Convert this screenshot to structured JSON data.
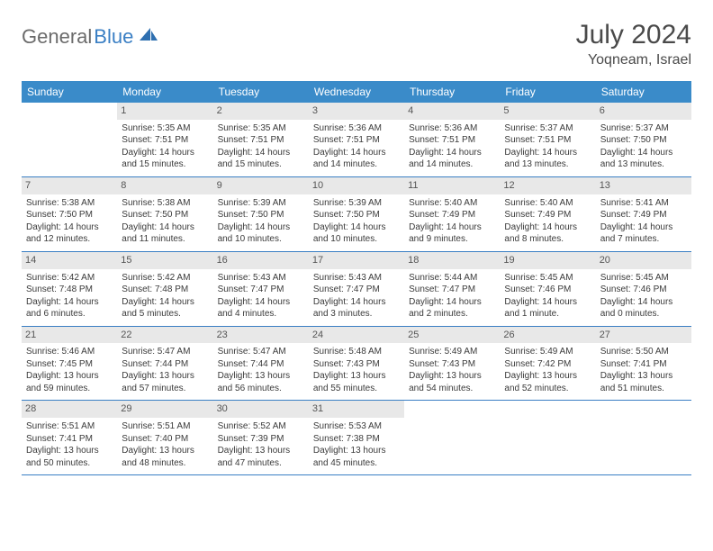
{
  "logo": {
    "part1": "General",
    "part2": "Blue"
  },
  "title": "July 2024",
  "location": "Yoqneam, Israel",
  "colors": {
    "header_bg": "#3a8bc9",
    "accent": "#3a7fc4",
    "text": "#4a4a4a",
    "daynum_bg": "#e8e8e8"
  },
  "weekdays": [
    "Sunday",
    "Monday",
    "Tuesday",
    "Wednesday",
    "Thursday",
    "Friday",
    "Saturday"
  ],
  "weeks": [
    [
      {
        "n": "",
        "sr": "",
        "ss": "",
        "dl": ""
      },
      {
        "n": "1",
        "sr": "Sunrise: 5:35 AM",
        "ss": "Sunset: 7:51 PM",
        "dl": "Daylight: 14 hours and 15 minutes."
      },
      {
        "n": "2",
        "sr": "Sunrise: 5:35 AM",
        "ss": "Sunset: 7:51 PM",
        "dl": "Daylight: 14 hours and 15 minutes."
      },
      {
        "n": "3",
        "sr": "Sunrise: 5:36 AM",
        "ss": "Sunset: 7:51 PM",
        "dl": "Daylight: 14 hours and 14 minutes."
      },
      {
        "n": "4",
        "sr": "Sunrise: 5:36 AM",
        "ss": "Sunset: 7:51 PM",
        "dl": "Daylight: 14 hours and 14 minutes."
      },
      {
        "n": "5",
        "sr": "Sunrise: 5:37 AM",
        "ss": "Sunset: 7:51 PM",
        "dl": "Daylight: 14 hours and 13 minutes."
      },
      {
        "n": "6",
        "sr": "Sunrise: 5:37 AM",
        "ss": "Sunset: 7:50 PM",
        "dl": "Daylight: 14 hours and 13 minutes."
      }
    ],
    [
      {
        "n": "7",
        "sr": "Sunrise: 5:38 AM",
        "ss": "Sunset: 7:50 PM",
        "dl": "Daylight: 14 hours and 12 minutes."
      },
      {
        "n": "8",
        "sr": "Sunrise: 5:38 AM",
        "ss": "Sunset: 7:50 PM",
        "dl": "Daylight: 14 hours and 11 minutes."
      },
      {
        "n": "9",
        "sr": "Sunrise: 5:39 AM",
        "ss": "Sunset: 7:50 PM",
        "dl": "Daylight: 14 hours and 10 minutes."
      },
      {
        "n": "10",
        "sr": "Sunrise: 5:39 AM",
        "ss": "Sunset: 7:50 PM",
        "dl": "Daylight: 14 hours and 10 minutes."
      },
      {
        "n": "11",
        "sr": "Sunrise: 5:40 AM",
        "ss": "Sunset: 7:49 PM",
        "dl": "Daylight: 14 hours and 9 minutes."
      },
      {
        "n": "12",
        "sr": "Sunrise: 5:40 AM",
        "ss": "Sunset: 7:49 PM",
        "dl": "Daylight: 14 hours and 8 minutes."
      },
      {
        "n": "13",
        "sr": "Sunrise: 5:41 AM",
        "ss": "Sunset: 7:49 PM",
        "dl": "Daylight: 14 hours and 7 minutes."
      }
    ],
    [
      {
        "n": "14",
        "sr": "Sunrise: 5:42 AM",
        "ss": "Sunset: 7:48 PM",
        "dl": "Daylight: 14 hours and 6 minutes."
      },
      {
        "n": "15",
        "sr": "Sunrise: 5:42 AM",
        "ss": "Sunset: 7:48 PM",
        "dl": "Daylight: 14 hours and 5 minutes."
      },
      {
        "n": "16",
        "sr": "Sunrise: 5:43 AM",
        "ss": "Sunset: 7:47 PM",
        "dl": "Daylight: 14 hours and 4 minutes."
      },
      {
        "n": "17",
        "sr": "Sunrise: 5:43 AM",
        "ss": "Sunset: 7:47 PM",
        "dl": "Daylight: 14 hours and 3 minutes."
      },
      {
        "n": "18",
        "sr": "Sunrise: 5:44 AM",
        "ss": "Sunset: 7:47 PM",
        "dl": "Daylight: 14 hours and 2 minutes."
      },
      {
        "n": "19",
        "sr": "Sunrise: 5:45 AM",
        "ss": "Sunset: 7:46 PM",
        "dl": "Daylight: 14 hours and 1 minute."
      },
      {
        "n": "20",
        "sr": "Sunrise: 5:45 AM",
        "ss": "Sunset: 7:46 PM",
        "dl": "Daylight: 14 hours and 0 minutes."
      }
    ],
    [
      {
        "n": "21",
        "sr": "Sunrise: 5:46 AM",
        "ss": "Sunset: 7:45 PM",
        "dl": "Daylight: 13 hours and 59 minutes."
      },
      {
        "n": "22",
        "sr": "Sunrise: 5:47 AM",
        "ss": "Sunset: 7:44 PM",
        "dl": "Daylight: 13 hours and 57 minutes."
      },
      {
        "n": "23",
        "sr": "Sunrise: 5:47 AM",
        "ss": "Sunset: 7:44 PM",
        "dl": "Daylight: 13 hours and 56 minutes."
      },
      {
        "n": "24",
        "sr": "Sunrise: 5:48 AM",
        "ss": "Sunset: 7:43 PM",
        "dl": "Daylight: 13 hours and 55 minutes."
      },
      {
        "n": "25",
        "sr": "Sunrise: 5:49 AM",
        "ss": "Sunset: 7:43 PM",
        "dl": "Daylight: 13 hours and 54 minutes."
      },
      {
        "n": "26",
        "sr": "Sunrise: 5:49 AM",
        "ss": "Sunset: 7:42 PM",
        "dl": "Daylight: 13 hours and 52 minutes."
      },
      {
        "n": "27",
        "sr": "Sunrise: 5:50 AM",
        "ss": "Sunset: 7:41 PM",
        "dl": "Daylight: 13 hours and 51 minutes."
      }
    ],
    [
      {
        "n": "28",
        "sr": "Sunrise: 5:51 AM",
        "ss": "Sunset: 7:41 PM",
        "dl": "Daylight: 13 hours and 50 minutes."
      },
      {
        "n": "29",
        "sr": "Sunrise: 5:51 AM",
        "ss": "Sunset: 7:40 PM",
        "dl": "Daylight: 13 hours and 48 minutes."
      },
      {
        "n": "30",
        "sr": "Sunrise: 5:52 AM",
        "ss": "Sunset: 7:39 PM",
        "dl": "Daylight: 13 hours and 47 minutes."
      },
      {
        "n": "31",
        "sr": "Sunrise: 5:53 AM",
        "ss": "Sunset: 7:38 PM",
        "dl": "Daylight: 13 hours and 45 minutes."
      },
      {
        "n": "",
        "sr": "",
        "ss": "",
        "dl": ""
      },
      {
        "n": "",
        "sr": "",
        "ss": "",
        "dl": ""
      },
      {
        "n": "",
        "sr": "",
        "ss": "",
        "dl": ""
      }
    ]
  ]
}
